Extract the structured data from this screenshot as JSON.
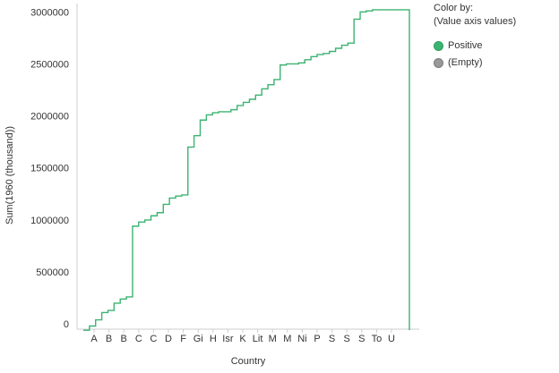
{
  "chart_data": {
    "type": "line",
    "xlabel": "Country",
    "ylabel": "Sum(1960 (thousand))",
    "ylim": [
      -50000,
      3080000
    ],
    "y_ticks": [
      0,
      500000,
      1000000,
      1500000,
      2000000,
      2500000,
      3000000
    ],
    "y_tick_labels": [
      "0",
      "500000",
      "1000000",
      "1500000",
      "2000000",
      "2500000",
      "3000000"
    ],
    "x_tick_labels": [
      "A",
      "B",
      "B",
      "C",
      "C",
      "D",
      "F",
      "Gi",
      "H",
      "Isr",
      "K",
      "Lit",
      "M",
      "M",
      "Ni",
      "P",
      "S",
      "S",
      "S",
      "To",
      "U"
    ],
    "series": [
      {
        "name": "Positive",
        "color": "#3cb371",
        "x": [
          0,
          0.4,
          0.8,
          1.2,
          1.6,
          2.0,
          2.4,
          2.8,
          3.2,
          3.6,
          4.0,
          4.4,
          4.8,
          5.2,
          5.6,
          6.0,
          6.4,
          6.8,
          7.2,
          7.6,
          8.0,
          8.4,
          8.8,
          9.2,
          9.6,
          10.0,
          10.4,
          10.8,
          11.2,
          11.6,
          12.0,
          12.4,
          12.8,
          13.2,
          13.6,
          14.0,
          14.4,
          14.8,
          15.2,
          15.6,
          16.0,
          16.4,
          16.8,
          17.2,
          17.6,
          18.0,
          18.4,
          18.8,
          19.2,
          19.6,
          20.0,
          20.4,
          20.8,
          21.2
        ],
        "values": [
          -60000,
          -20000,
          40000,
          110000,
          130000,
          200000,
          240000,
          260000,
          940000,
          980000,
          1000000,
          1040000,
          1070000,
          1150000,
          1210000,
          1230000,
          1240000,
          1700000,
          1810000,
          1960000,
          2010000,
          2030000,
          2040000,
          2040000,
          2060000,
          2100000,
          2130000,
          2160000,
          2200000,
          2260000,
          2300000,
          2350000,
          2490000,
          2500000,
          2500000,
          2510000,
          2540000,
          2570000,
          2590000,
          2600000,
          2620000,
          2650000,
          2680000,
          2700000,
          2930000,
          3000000,
          3010000,
          3020000,
          3020000,
          3020000,
          3020000,
          3020000,
          3020000,
          -60000
        ]
      }
    ],
    "legend": {
      "title": "Color by:",
      "subtitle": "(Value axis values)",
      "placement": "top-right",
      "entries": [
        {
          "label": "Positive",
          "color": "#3cb371"
        },
        {
          "label": "(Empty)",
          "color": "#999999"
        }
      ]
    },
    "grid": false
  }
}
